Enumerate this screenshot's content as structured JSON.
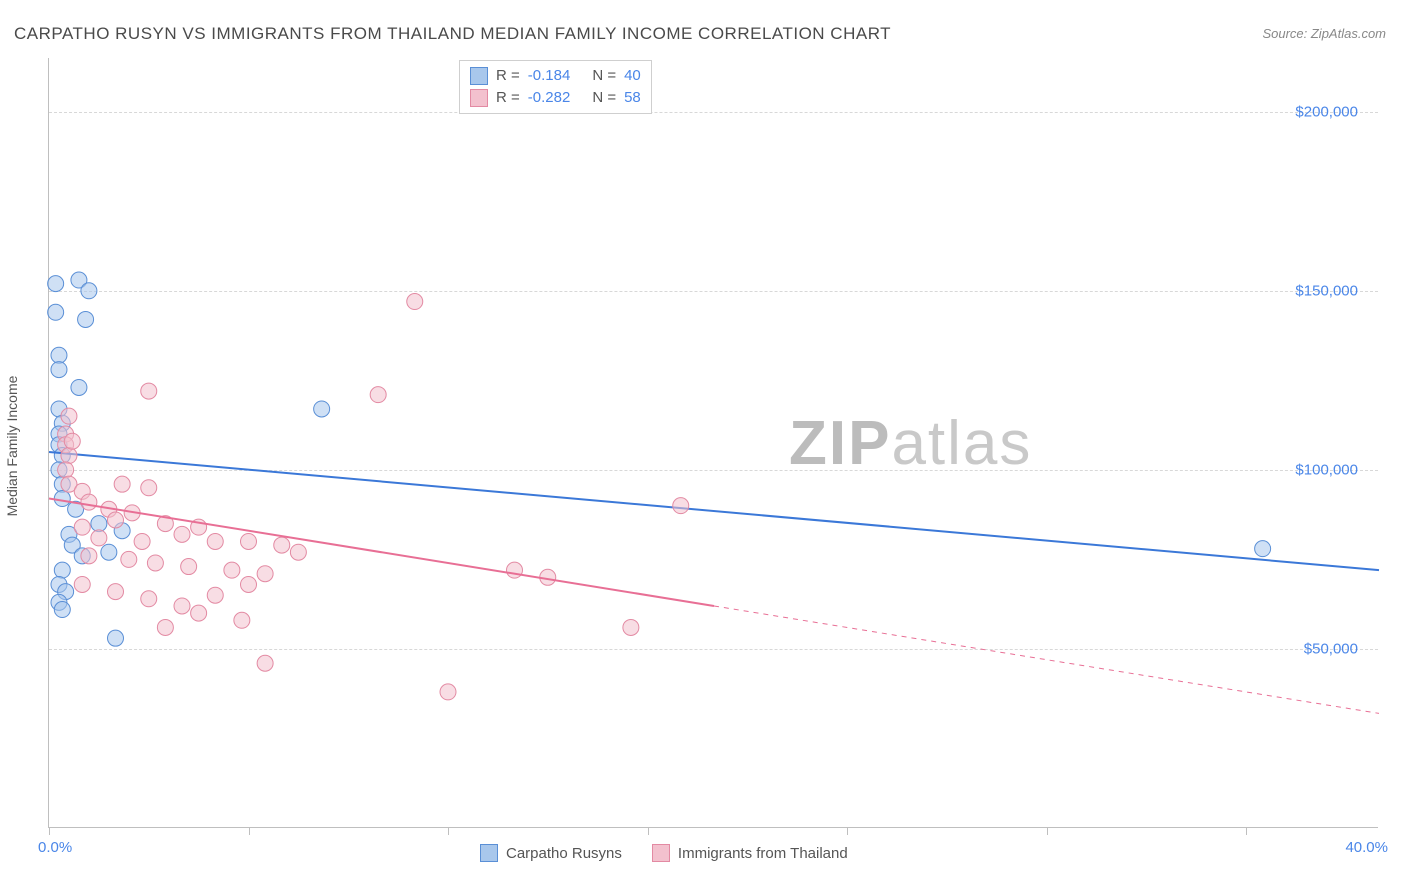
{
  "title": "CARPATHO RUSYN VS IMMIGRANTS FROM THAILAND MEDIAN FAMILY INCOME CORRELATION CHART",
  "source": "Source: ZipAtlas.com",
  "watermark": {
    "zip": "ZIP",
    "atlas": "atlas"
  },
  "chart": {
    "type": "scatter",
    "ylabel": "Median Family Income",
    "xlim": [
      0,
      40
    ],
    "ylim": [
      0,
      215000
    ],
    "xtick_labels": {
      "min": "0.0%",
      "max": "40.0%"
    },
    "xtick_positions_pct": [
      0,
      15,
      30,
      45,
      60,
      75,
      90
    ],
    "ytick_labels": [
      "$50,000",
      "$100,000",
      "$150,000",
      "$200,000"
    ],
    "ytick_values": [
      50000,
      100000,
      150000,
      200000
    ],
    "grid_color": "#d8d8d8",
    "axis_color": "#bfbfbf",
    "background_color": "#ffffff",
    "marker_radius": 8,
    "marker_opacity": 0.55,
    "series": [
      {
        "name": "Carpatho Rusyns",
        "color_fill": "#a8c7ec",
        "color_stroke": "#5a8fd6",
        "r": "-0.184",
        "n": "40",
        "regression": {
          "x0": 0,
          "y0": 105000,
          "x1": 40,
          "y1": 72000,
          "solid_until_x": 40,
          "line_color": "#3b78d8",
          "line_width": 2
        },
        "points": [
          [
            0.2,
            152000
          ],
          [
            0.9,
            153000
          ],
          [
            1.2,
            150000
          ],
          [
            0.2,
            144000
          ],
          [
            1.1,
            142000
          ],
          [
            0.3,
            132000
          ],
          [
            0.3,
            128000
          ],
          [
            0.9,
            123000
          ],
          [
            0.3,
            117000
          ],
          [
            0.4,
            113000
          ],
          [
            0.3,
            110000
          ],
          [
            0.3,
            107000
          ],
          [
            8.2,
            117000
          ],
          [
            0.4,
            104000
          ],
          [
            0.3,
            100000
          ],
          [
            0.4,
            96000
          ],
          [
            0.4,
            92000
          ],
          [
            0.8,
            89000
          ],
          [
            1.5,
            85000
          ],
          [
            0.6,
            82000
          ],
          [
            2.2,
            83000
          ],
          [
            0.7,
            79000
          ],
          [
            1.0,
            76000
          ],
          [
            1.8,
            77000
          ],
          [
            0.4,
            72000
          ],
          [
            0.3,
            68000
          ],
          [
            0.5,
            66000
          ],
          [
            0.3,
            63000
          ],
          [
            0.4,
            61000
          ],
          [
            2.0,
            53000
          ],
          [
            36.5,
            78000
          ]
        ]
      },
      {
        "name": "Immigrants from Thailand",
        "color_fill": "#f3c1ce",
        "color_stroke": "#e38aa3",
        "r": "-0.282",
        "n": "58",
        "regression": {
          "x0": 0,
          "y0": 92000,
          "x1": 40,
          "y1": 32000,
          "solid_until_x": 20,
          "line_color": "#e86f95",
          "line_width": 2
        },
        "points": [
          [
            11.0,
            147000
          ],
          [
            3.0,
            122000
          ],
          [
            9.9,
            121000
          ],
          [
            0.6,
            115000
          ],
          [
            0.5,
            110000
          ],
          [
            0.5,
            107000
          ],
          [
            0.6,
            104000
          ],
          [
            0.5,
            100000
          ],
          [
            0.7,
            108000
          ],
          [
            0.6,
            96000
          ],
          [
            1.0,
            94000
          ],
          [
            2.2,
            96000
          ],
          [
            3.0,
            95000
          ],
          [
            1.2,
            91000
          ],
          [
            1.8,
            89000
          ],
          [
            2.5,
            88000
          ],
          [
            1.0,
            84000
          ],
          [
            2.0,
            86000
          ],
          [
            3.5,
            85000
          ],
          [
            4.5,
            84000
          ],
          [
            1.5,
            81000
          ],
          [
            2.8,
            80000
          ],
          [
            4.0,
            82000
          ],
          [
            5.0,
            80000
          ],
          [
            6.0,
            80000
          ],
          [
            7.0,
            79000
          ],
          [
            19.0,
            90000
          ],
          [
            1.2,
            76000
          ],
          [
            2.4,
            75000
          ],
          [
            3.2,
            74000
          ],
          [
            4.2,
            73000
          ],
          [
            5.5,
            72000
          ],
          [
            6.5,
            71000
          ],
          [
            7.5,
            77000
          ],
          [
            14.0,
            72000
          ],
          [
            15.0,
            70000
          ],
          [
            1.0,
            68000
          ],
          [
            2.0,
            66000
          ],
          [
            3.0,
            64000
          ],
          [
            4.0,
            62000
          ],
          [
            5.0,
            65000
          ],
          [
            6.0,
            68000
          ],
          [
            4.5,
            60000
          ],
          [
            5.8,
            58000
          ],
          [
            3.5,
            56000
          ],
          [
            17.5,
            56000
          ],
          [
            6.5,
            46000
          ],
          [
            12.0,
            38000
          ]
        ]
      }
    ],
    "legend_stats": {
      "r_label": "R =",
      "n_label": "N ="
    }
  }
}
